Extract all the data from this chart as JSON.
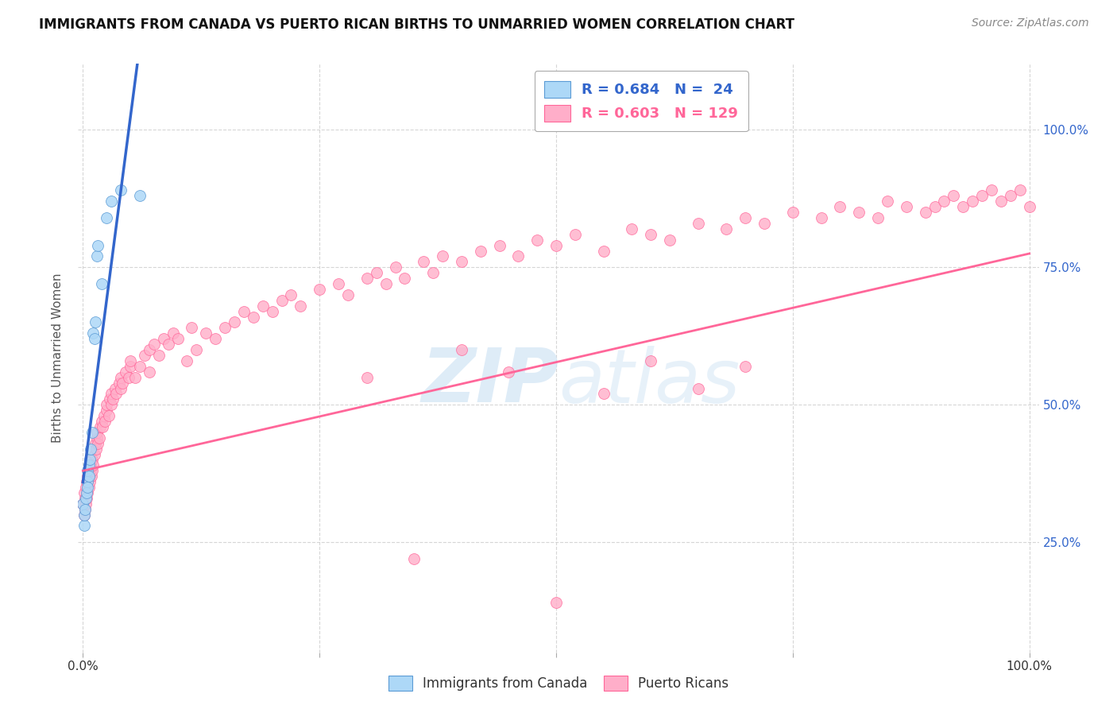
{
  "title": "IMMIGRANTS FROM CANADA VS PUERTO RICAN BIRTHS TO UNMARRIED WOMEN CORRELATION CHART",
  "source": "Source: ZipAtlas.com",
  "ylabel": "Births to Unmarried Women",
  "right_yticks": [
    "25.0%",
    "50.0%",
    "75.0%",
    "100.0%"
  ],
  "right_ytick_vals": [
    0.25,
    0.5,
    0.75,
    1.0
  ],
  "legend_labels": [
    "Immigrants from Canada",
    "Puerto Ricans"
  ],
  "blue_color": "#ADD8F7",
  "pink_color": "#FFAEC9",
  "blue_edge_color": "#5B9BD5",
  "pink_edge_color": "#FF6699",
  "blue_line_color": "#3366CC",
  "pink_line_color": "#FF6699",
  "watermark_color": "#D0E4F5",
  "background_color": "#FFFFFF",
  "blue_x": [
    0.0,
    0.001,
    0.001,
    0.002,
    0.003,
    0.004,
    0.005,
    0.005,
    0.005,
    0.006,
    0.006,
    0.007,
    0.008,
    0.01,
    0.011,
    0.012,
    0.013,
    0.015,
    0.016,
    0.02,
    0.025,
    0.03,
    0.04,
    0.06
  ],
  "blue_y": [
    0.32,
    0.28,
    0.3,
    0.31,
    0.33,
    0.34,
    0.36,
    0.38,
    0.35,
    0.39,
    0.37,
    0.4,
    0.42,
    0.45,
    0.63,
    0.62,
    0.65,
    0.77,
    0.79,
    0.72,
    0.84,
    0.87,
    0.89,
    0.88
  ],
  "pink_x": [
    0.0,
    0.001,
    0.001,
    0.002,
    0.002,
    0.003,
    0.003,
    0.004,
    0.004,
    0.005,
    0.005,
    0.006,
    0.006,
    0.007,
    0.007,
    0.008,
    0.008,
    0.009,
    0.01,
    0.01,
    0.011,
    0.012,
    0.013,
    0.014,
    0.015,
    0.015,
    0.016,
    0.017,
    0.018,
    0.02,
    0.021,
    0.022,
    0.023,
    0.025,
    0.025,
    0.027,
    0.028,
    0.03,
    0.03,
    0.032,
    0.034,
    0.035,
    0.038,
    0.04,
    0.04,
    0.042,
    0.045,
    0.048,
    0.05,
    0.05,
    0.055,
    0.06,
    0.065,
    0.07,
    0.07,
    0.075,
    0.08,
    0.085,
    0.09,
    0.095,
    0.1,
    0.11,
    0.115,
    0.12,
    0.13,
    0.14,
    0.15,
    0.16,
    0.17,
    0.18,
    0.19,
    0.2,
    0.21,
    0.22,
    0.23,
    0.25,
    0.27,
    0.28,
    0.3,
    0.31,
    0.32,
    0.33,
    0.34,
    0.36,
    0.37,
    0.38,
    0.4,
    0.42,
    0.44,
    0.46,
    0.48,
    0.5,
    0.52,
    0.55,
    0.58,
    0.6,
    0.62,
    0.65,
    0.68,
    0.7,
    0.72,
    0.75,
    0.78,
    0.8,
    0.82,
    0.84,
    0.85,
    0.87,
    0.89,
    0.9,
    0.91,
    0.92,
    0.93,
    0.94,
    0.95,
    0.96,
    0.97,
    0.98,
    0.99,
    1.0,
    0.3,
    0.35,
    0.4,
    0.45,
    0.5,
    0.55,
    0.6,
    0.65,
    0.7
  ],
  "pink_y": [
    0.32,
    0.3,
    0.34,
    0.31,
    0.33,
    0.32,
    0.35,
    0.33,
    0.36,
    0.34,
    0.37,
    0.35,
    0.38,
    0.36,
    0.37,
    0.38,
    0.39,
    0.37,
    0.4,
    0.38,
    0.39,
    0.41,
    0.43,
    0.42,
    0.44,
    0.45,
    0.43,
    0.44,
    0.46,
    0.47,
    0.46,
    0.48,
    0.47,
    0.49,
    0.5,
    0.48,
    0.51,
    0.5,
    0.52,
    0.51,
    0.53,
    0.52,
    0.54,
    0.53,
    0.55,
    0.54,
    0.56,
    0.55,
    0.57,
    0.58,
    0.55,
    0.57,
    0.59,
    0.6,
    0.56,
    0.61,
    0.59,
    0.62,
    0.61,
    0.63,
    0.62,
    0.58,
    0.64,
    0.6,
    0.63,
    0.62,
    0.64,
    0.65,
    0.67,
    0.66,
    0.68,
    0.67,
    0.69,
    0.7,
    0.68,
    0.71,
    0.72,
    0.7,
    0.73,
    0.74,
    0.72,
    0.75,
    0.73,
    0.76,
    0.74,
    0.77,
    0.76,
    0.78,
    0.79,
    0.77,
    0.8,
    0.79,
    0.81,
    0.78,
    0.82,
    0.81,
    0.8,
    0.83,
    0.82,
    0.84,
    0.83,
    0.85,
    0.84,
    0.86,
    0.85,
    0.84,
    0.87,
    0.86,
    0.85,
    0.86,
    0.87,
    0.88,
    0.86,
    0.87,
    0.88,
    0.89,
    0.87,
    0.88,
    0.89,
    0.86,
    0.55,
    0.22,
    0.6,
    0.56,
    0.14,
    0.52,
    0.58,
    0.53,
    0.57
  ],
  "blue_line_x0": 0.0,
  "blue_line_x1": 0.065,
  "pink_line_x0": 0.0,
  "pink_line_x1": 1.0,
  "pink_line_y0": 0.38,
  "pink_line_y1": 0.775,
  "xlim": [
    -0.005,
    1.01
  ],
  "ylim": [
    0.05,
    1.12
  ],
  "xticks": [
    0.0,
    1.0
  ],
  "xtick_labels": [
    "0.0%",
    "100.0%"
  ]
}
